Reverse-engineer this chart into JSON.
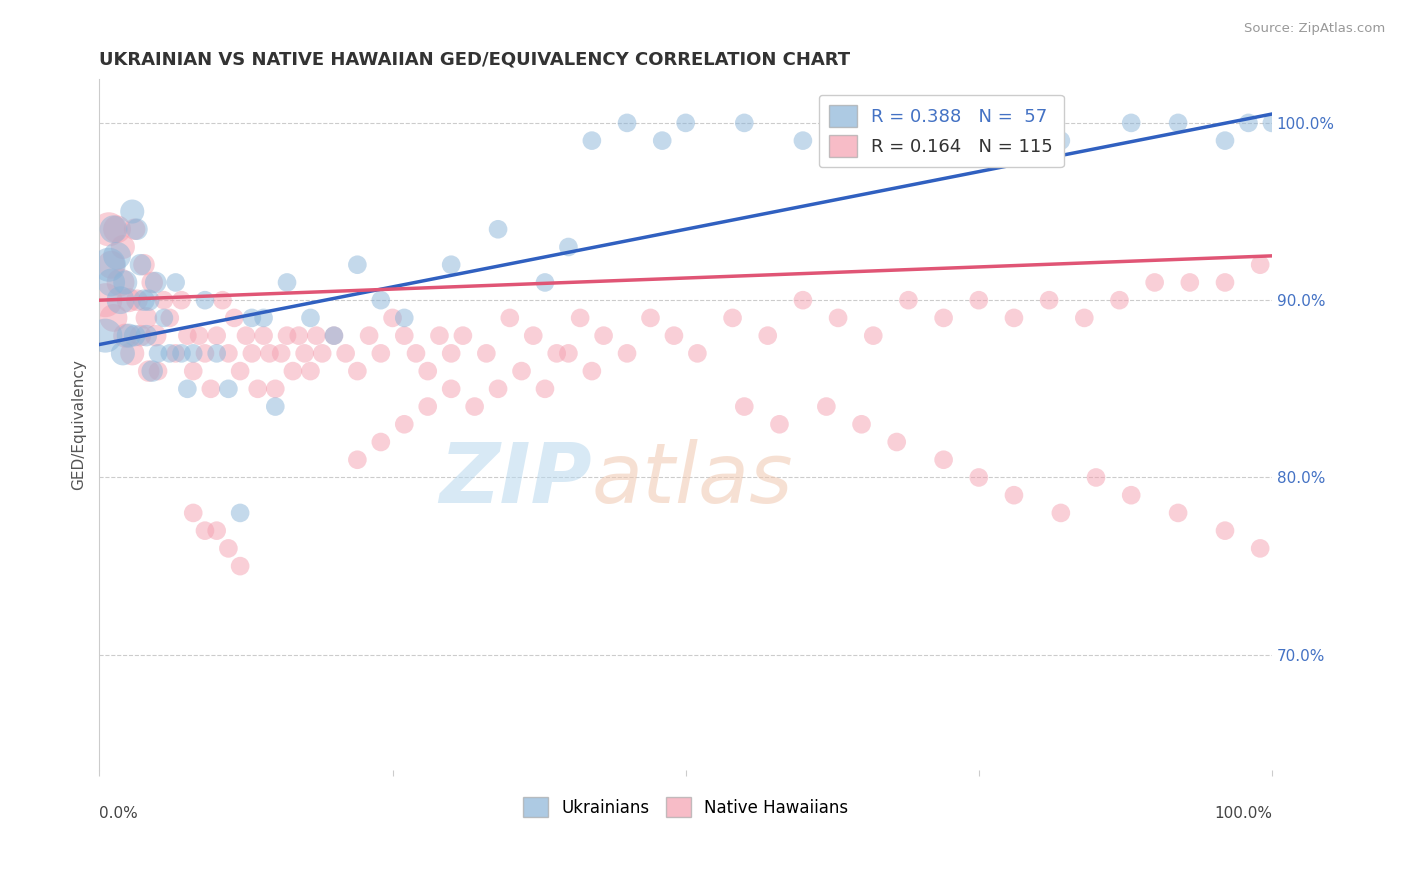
{
  "title": "UKRAINIAN VS NATIVE HAWAIIAN GED/EQUIVALENCY CORRELATION CHART",
  "source": "Source: ZipAtlas.com",
  "ylabel": "GED/Equivalency",
  "legend_entry1": {
    "label": "Ukrainians",
    "color": "#8ab4d8",
    "R": 0.388,
    "N": 57
  },
  "legend_entry2": {
    "label": "Native Hawaiians",
    "color": "#f4a0b0",
    "R": 0.164,
    "N": 115
  },
  "trend_blue": "#3060c0",
  "trend_pink": "#e05575",
  "xlim": [
    0.0,
    1.0
  ],
  "ylim": [
    0.635,
    1.025
  ],
  "yticks": [
    0.7,
    0.8,
    0.9,
    1.0
  ],
  "ytick_labels": [
    "70.0%",
    "80.0%",
    "90.0%",
    "100.0%"
  ],
  "background_color": "#ffffff",
  "grid_color": "#cccccc",
  "blue_x": [
    0.005,
    0.008,
    0.01,
    0.012,
    0.015,
    0.018,
    0.02,
    0.022,
    0.025,
    0.028,
    0.03,
    0.032,
    0.035,
    0.038,
    0.04,
    0.042,
    0.045,
    0.048,
    0.05,
    0.055,
    0.06,
    0.065,
    0.07,
    0.075,
    0.08,
    0.09,
    0.1,
    0.11,
    0.12,
    0.13,
    0.14,
    0.15,
    0.16,
    0.18,
    0.2,
    0.22,
    0.24,
    0.26,
    0.3,
    0.34,
    0.38,
    0.4,
    0.42,
    0.45,
    0.48,
    0.5,
    0.55,
    0.6,
    0.65,
    0.7,
    0.75,
    0.82,
    0.88,
    0.92,
    0.96,
    0.98,
    1.0
  ],
  "blue_y": [
    0.88,
    0.92,
    0.91,
    0.94,
    0.925,
    0.9,
    0.87,
    0.91,
    0.88,
    0.95,
    0.88,
    0.94,
    0.92,
    0.9,
    0.88,
    0.9,
    0.86,
    0.91,
    0.87,
    0.89,
    0.87,
    0.91,
    0.87,
    0.85,
    0.87,
    0.9,
    0.87,
    0.85,
    0.78,
    0.89,
    0.89,
    0.84,
    0.91,
    0.89,
    0.88,
    0.92,
    0.9,
    0.89,
    0.92,
    0.94,
    0.91,
    0.93,
    0.99,
    1.0,
    0.99,
    1.0,
    1.0,
    0.99,
    1.0,
    1.0,
    1.0,
    0.99,
    1.0,
    1.0,
    0.99,
    1.0,
    1.0
  ],
  "blue_sizes": [
    600,
    350,
    200,
    200,
    200,
    200,
    200,
    200,
    200,
    200,
    200,
    200,
    200,
    200,
    200,
    200,
    200,
    200,
    200,
    200,
    200,
    200,
    200,
    200,
    200,
    200,
    200,
    200,
    200,
    200,
    200,
    200,
    200,
    200,
    200,
    200,
    200,
    200,
    200,
    200,
    200,
    200,
    200,
    200,
    200,
    200,
    200,
    200,
    200,
    200,
    200,
    200,
    200,
    200,
    200,
    200,
    200
  ],
  "pink_x": [
    0.005,
    0.008,
    0.01,
    0.012,
    0.015,
    0.018,
    0.02,
    0.022,
    0.025,
    0.028,
    0.03,
    0.032,
    0.035,
    0.038,
    0.04,
    0.042,
    0.045,
    0.048,
    0.05,
    0.055,
    0.06,
    0.065,
    0.07,
    0.075,
    0.08,
    0.085,
    0.09,
    0.095,
    0.1,
    0.105,
    0.11,
    0.115,
    0.12,
    0.125,
    0.13,
    0.135,
    0.14,
    0.145,
    0.15,
    0.155,
    0.16,
    0.165,
    0.17,
    0.175,
    0.18,
    0.185,
    0.19,
    0.2,
    0.21,
    0.22,
    0.23,
    0.24,
    0.25,
    0.26,
    0.27,
    0.28,
    0.29,
    0.3,
    0.31,
    0.33,
    0.35,
    0.37,
    0.39,
    0.41,
    0.43,
    0.45,
    0.47,
    0.49,
    0.51,
    0.54,
    0.57,
    0.6,
    0.63,
    0.66,
    0.69,
    0.72,
    0.75,
    0.78,
    0.81,
    0.84,
    0.87,
    0.9,
    0.93,
    0.96,
    0.99,
    0.4,
    0.42,
    0.38,
    0.36,
    0.34,
    0.32,
    0.3,
    0.28,
    0.26,
    0.24,
    0.22,
    0.55,
    0.58,
    0.62,
    0.65,
    0.68,
    0.72,
    0.75,
    0.78,
    0.82,
    0.85,
    0.88,
    0.92,
    0.96,
    0.99,
    0.08,
    0.09,
    0.1,
    0.11,
    0.12
  ],
  "pink_y": [
    0.9,
    0.94,
    0.92,
    0.89,
    0.94,
    0.91,
    0.93,
    0.88,
    0.9,
    0.87,
    0.94,
    0.9,
    0.88,
    0.92,
    0.89,
    0.86,
    0.91,
    0.88,
    0.86,
    0.9,
    0.89,
    0.87,
    0.9,
    0.88,
    0.86,
    0.88,
    0.87,
    0.85,
    0.88,
    0.9,
    0.87,
    0.89,
    0.86,
    0.88,
    0.87,
    0.85,
    0.88,
    0.87,
    0.85,
    0.87,
    0.88,
    0.86,
    0.88,
    0.87,
    0.86,
    0.88,
    0.87,
    0.88,
    0.87,
    0.86,
    0.88,
    0.87,
    0.89,
    0.88,
    0.87,
    0.86,
    0.88,
    0.87,
    0.88,
    0.87,
    0.89,
    0.88,
    0.87,
    0.89,
    0.88,
    0.87,
    0.89,
    0.88,
    0.87,
    0.89,
    0.88,
    0.9,
    0.89,
    0.88,
    0.9,
    0.89,
    0.9,
    0.89,
    0.9,
    0.89,
    0.9,
    0.91,
    0.91,
    0.91,
    0.92,
    0.87,
    0.86,
    0.85,
    0.86,
    0.85,
    0.84,
    0.85,
    0.84,
    0.83,
    0.82,
    0.81,
    0.84,
    0.83,
    0.84,
    0.83,
    0.82,
    0.81,
    0.8,
    0.79,
    0.78,
    0.8,
    0.79,
    0.78,
    0.77,
    0.76,
    0.78,
    0.77,
    0.77,
    0.76,
    0.75
  ],
  "pink_sizes": [
    600,
    350,
    200,
    200,
    200,
    200,
    200,
    200,
    200,
    200,
    200,
    200,
    200,
    200,
    200,
    200,
    200,
    200,
    200,
    200,
    200,
    200,
    200,
    200,
    200,
    200,
    200,
    200,
    200,
    200,
    200,
    200,
    200,
    200,
    200,
    200,
    200,
    200,
    200,
    200,
    200,
    200,
    200,
    200,
    200,
    200,
    200,
    200,
    200,
    200,
    200,
    200,
    200,
    200,
    200,
    200,
    200,
    200,
    200,
    200,
    200,
    200,
    200,
    200,
    200,
    200,
    200,
    200,
    200,
    200,
    200,
    200,
    200,
    200,
    200,
    200,
    200,
    200,
    200,
    200,
    200,
    200,
    200,
    200,
    200,
    200,
    200,
    200,
    200,
    200,
    200,
    200,
    200,
    200,
    200,
    200,
    200,
    200,
    200,
    200,
    200,
    200,
    200,
    200,
    200,
    200,
    200,
    200,
    200,
    200,
    200,
    200,
    200,
    200,
    200
  ]
}
